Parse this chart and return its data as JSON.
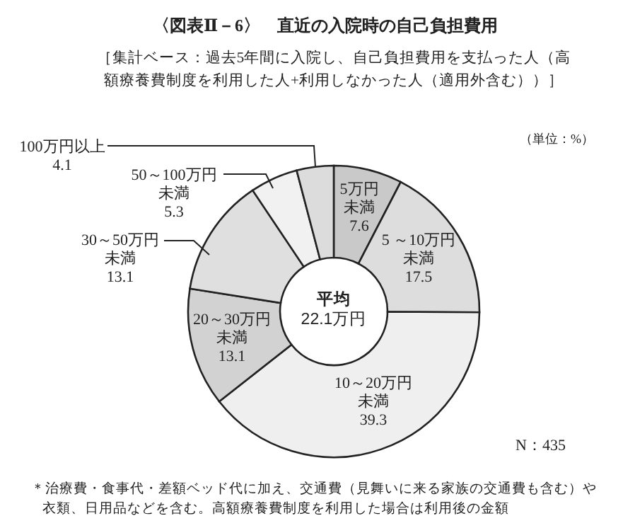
{
  "chart_data": {
    "type": "donut",
    "title": "〈図表Ⅱ－6〉　直近の入院時の自己負担費用",
    "subtitle": "［集計ベース：過去5年間に入院し、自己負担費用を支払った人（高額療養費制度を利用した人+利用しなかった人（適用外含む））］",
    "categories": [
      "5万円未満",
      "5 ～10万円未満",
      "10～20万円未満",
      "20～30万円未満",
      "30～50万円未満",
      "50～100万円未満",
      "100万円以上"
    ],
    "values": [
      7.6,
      17.5,
      39.3,
      13.1,
      13.1,
      5.3,
      4.1
    ],
    "colors": [
      "#c9c9c9",
      "#dddddd",
      "#efefef",
      "#d2d2d2",
      "#dfdfdf",
      "#f1f1f1",
      "#dcdcdc"
    ],
    "data_labels": true,
    "annotations": [
      "平均",
      "22.1万円",
      "（単位：%）",
      "N：435",
      "＊治療費・食事代・差額ベッド代に加え、交通費（見舞いに来る家族の交通費も含む）や衣類、日用品などを含む。高額療養費制度を利用した場合は利用後の金額"
    ]
  }
}
